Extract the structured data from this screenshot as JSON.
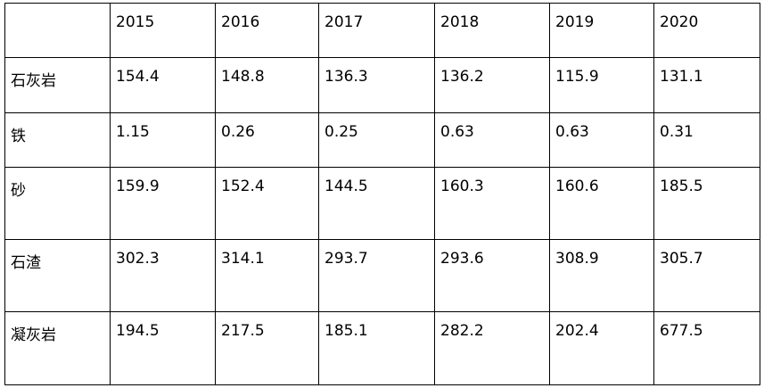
{
  "table": {
    "columns": [
      "2015",
      "2016",
      "2017",
      "2018",
      "2019",
      "2020"
    ],
    "rows": [
      {
        "label": "石灰岩",
        "values": [
          "154.4",
          "148.8",
          "136.3",
          "136.2",
          "115.9",
          "131.1"
        ]
      },
      {
        "label": "铁",
        "values": [
          "1.15",
          "0.26",
          "0.25",
          "0.63",
          "0.63",
          "0.31"
        ]
      },
      {
        "label": "砂",
        "values": [
          "159.9",
          "152.4",
          "144.5",
          "160.3",
          "160.6",
          "185.5"
        ]
      },
      {
        "label": "石渣",
        "values": [
          "302.3",
          "314.1",
          "293.7",
          "293.6",
          "308.9",
          "305.7"
        ]
      },
      {
        "label": "凝灰岩",
        "values": [
          "194.5",
          "217.5",
          "185.1",
          "282.2",
          "202.4",
          "677.5"
        ]
      }
    ]
  }
}
